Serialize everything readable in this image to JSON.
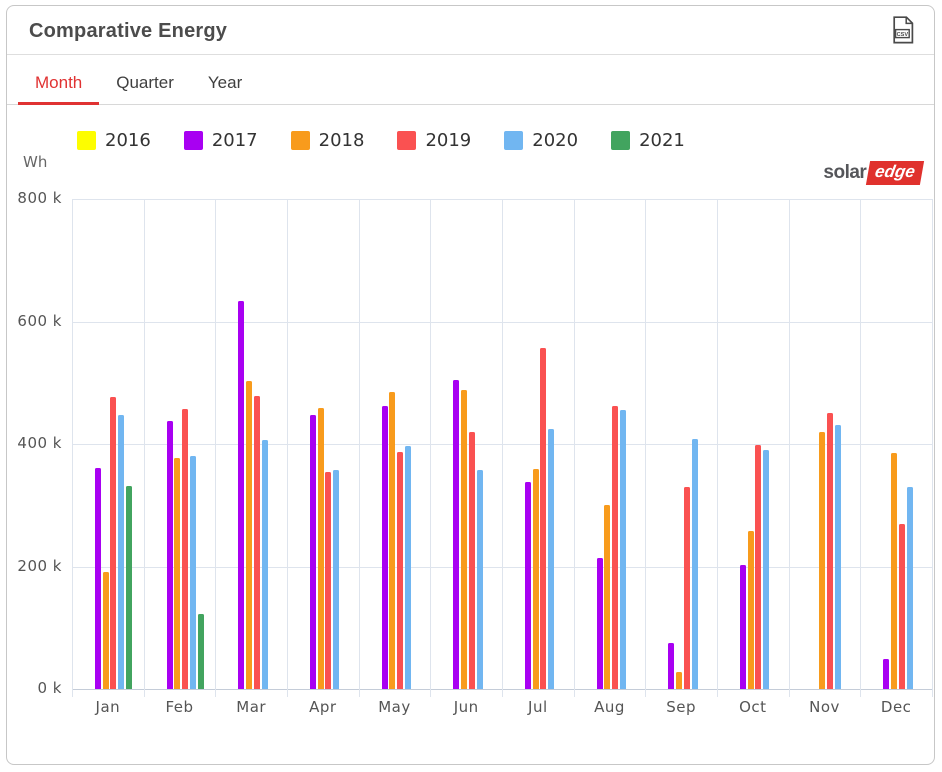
{
  "header": {
    "title": "Comparative Energy",
    "export_label": "CSV"
  },
  "tabs": {
    "active": "Month",
    "items": [
      {
        "label": "Month"
      },
      {
        "label": "Quarter"
      },
      {
        "label": "Year"
      }
    ]
  },
  "legend": {
    "unit_label": "Wh",
    "entries": [
      {
        "label": "2016",
        "color": "#fdfd00"
      },
      {
        "label": "2017",
        "color": "#a800f2"
      },
      {
        "label": "2018",
        "color": "#f89b1c"
      },
      {
        "label": "2019",
        "color": "#fa5151"
      },
      {
        "label": "2020",
        "color": "#71b6f1"
      },
      {
        "label": "2021",
        "color": "#42a45f"
      }
    ]
  },
  "logo": {
    "solar": "solar",
    "edge": "edge",
    "edge_bg": "#e0312d"
  },
  "theme": {
    "accent_red": "#e03232",
    "grid_color": "#dee4ed",
    "label_color": "#555555"
  },
  "chart_data": {
    "type": "bar",
    "title": "Comparative Energy",
    "xlabel": "",
    "ylabel": "Wh",
    "ylim": [
      0,
      800000
    ],
    "ytick_step": 200000,
    "ytick_labels": [
      "800 k",
      "600 k",
      "400 k",
      "200 k",
      "0 k"
    ],
    "grid": true,
    "legend_position": "top",
    "categories": [
      "Jan",
      "Feb",
      "Mar",
      "Apr",
      "May",
      "Jun",
      "Jul",
      "Aug",
      "Sep",
      "Oct",
      "Nov",
      "Dec"
    ],
    "series": [
      {
        "name": "2016",
        "color": "#fdfd00",
        "values": [
          null,
          null,
          null,
          null,
          null,
          null,
          null,
          null,
          null,
          null,
          null,
          null
        ]
      },
      {
        "name": "2017",
        "color": "#a800f2",
        "values": [
          361000,
          438000,
          634000,
          447000,
          462000,
          505000,
          338000,
          214000,
          75000,
          202000,
          null,
          49000
        ]
      },
      {
        "name": "2018",
        "color": "#f89b1c",
        "values": [
          191000,
          377000,
          503000,
          459000,
          485000,
          488000,
          359000,
          300000,
          28000,
          258000,
          420000,
          385000
        ]
      },
      {
        "name": "2019",
        "color": "#fa5151",
        "values": [
          477000,
          457000,
          478000,
          354000,
          387000,
          420000,
          557000,
          462000,
          330000,
          398000,
          451000,
          269000
        ]
      },
      {
        "name": "2020",
        "color": "#71b6f1",
        "values": [
          447000,
          380000,
          407000,
          358000,
          397000,
          358000,
          425000,
          456000,
          408000,
          390000,
          431000,
          330000
        ]
      },
      {
        "name": "2021",
        "color": "#42a45f",
        "values": [
          331000,
          122000,
          null,
          null,
          null,
          null,
          null,
          null,
          null,
          null,
          null,
          null
        ]
      }
    ]
  }
}
